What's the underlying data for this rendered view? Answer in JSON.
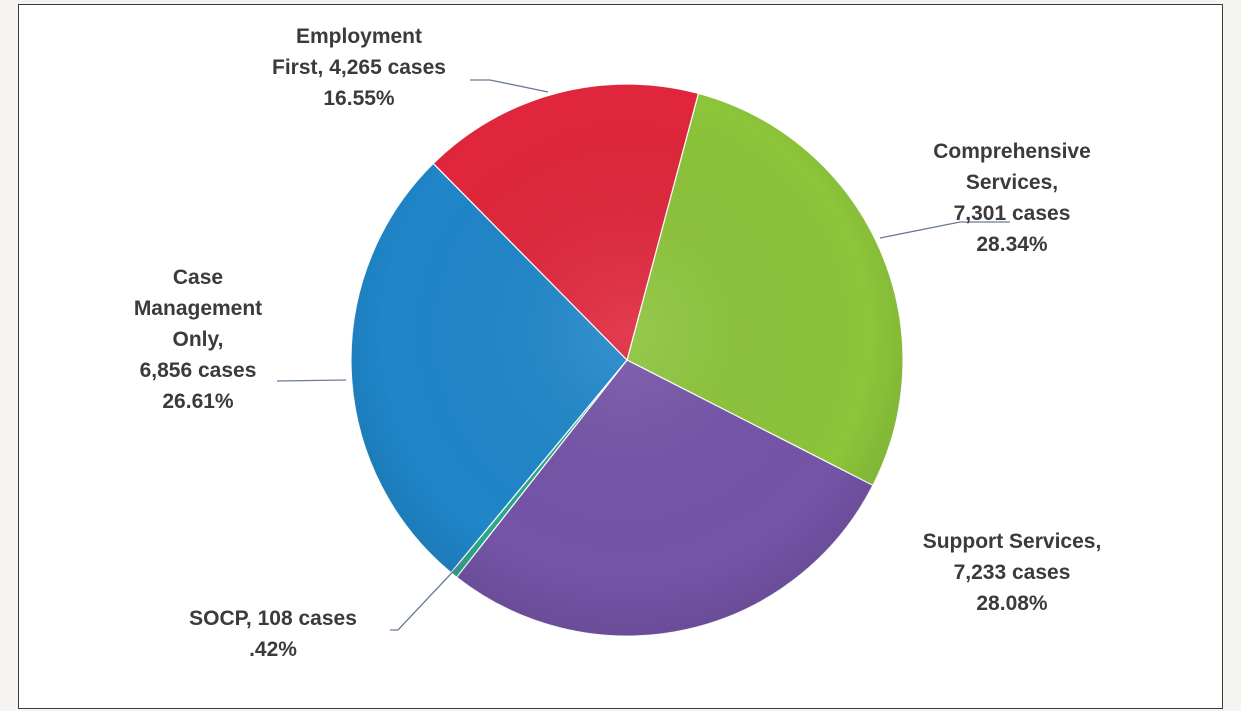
{
  "chart_data": {
    "type": "pie",
    "title": "",
    "slices": [
      {
        "category": "Comprehensive Services",
        "cases": 7301,
        "percent": 28.34,
        "color": "#8cc43a",
        "label_lines": [
          "Comprehensive",
          "Services,",
          "7,301 cases",
          "28.34%"
        ]
      },
      {
        "category": "Support Services",
        "cases": 7233,
        "percent": 28.08,
        "color": "#7554a8",
        "label_lines": [
          "Support Services,",
          "7,233 cases",
          "28.08%"
        ]
      },
      {
        "category": "SOCP",
        "cases": 108,
        "percent": 0.42,
        "color": "#2aa98c",
        "label_lines": [
          "SOCP, 108 cases",
          ".42%"
        ]
      },
      {
        "category": "Case Management Only",
        "cases": 6856,
        "percent": 26.61,
        "color": "#1f86c9",
        "label_lines": [
          "Case",
          "Management",
          "Only,",
          "6,856 cases",
          "26.61%"
        ]
      },
      {
        "category": "Employment First",
        "cases": 4265,
        "percent": 16.55,
        "color": "#e0263c",
        "label_lines": [
          "Employment",
          "First, 4,265 cases",
          "16.55%"
        ]
      }
    ],
    "start_angle_deg": 15,
    "direction": "clockwise",
    "legend": "none",
    "data_labels": "outside with leader lines"
  }
}
